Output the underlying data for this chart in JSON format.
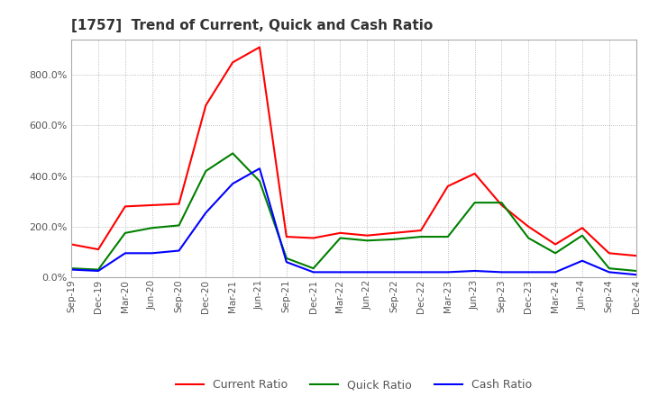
{
  "title": "[1757]  Trend of Current, Quick and Cash Ratio",
  "x_labels": [
    "Sep-19",
    "Dec-19",
    "Mar-20",
    "Jun-20",
    "Sep-20",
    "Dec-20",
    "Mar-21",
    "Jun-21",
    "Sep-21",
    "Dec-21",
    "Mar-22",
    "Jun-22",
    "Sep-22",
    "Dec-22",
    "Mar-23",
    "Jun-23",
    "Sep-23",
    "Dec-23",
    "Mar-24",
    "Jun-24",
    "Sep-24",
    "Dec-24"
  ],
  "current_ratio": [
    130,
    110,
    280,
    285,
    290,
    680,
    850,
    910,
    160,
    155,
    175,
    165,
    175,
    185,
    360,
    410,
    285,
    200,
    130,
    195,
    95,
    85
  ],
  "quick_ratio": [
    35,
    30,
    175,
    195,
    205,
    420,
    490,
    380,
    75,
    35,
    155,
    145,
    150,
    160,
    160,
    295,
    295,
    155,
    95,
    165,
    35,
    25
  ],
  "cash_ratio": [
    30,
    25,
    95,
    95,
    105,
    255,
    370,
    430,
    60,
    20,
    20,
    20,
    20,
    20,
    20,
    25,
    20,
    20,
    20,
    65,
    20,
    10
  ],
  "current_color": "#ff0000",
  "quick_color": "#008000",
  "cash_color": "#0000ff",
  "ylim": [
    0,
    940
  ],
  "yticks": [
    0,
    200,
    400,
    600,
    800
  ],
  "background_color": "#ffffff",
  "grid_color": "#aaaaaa"
}
